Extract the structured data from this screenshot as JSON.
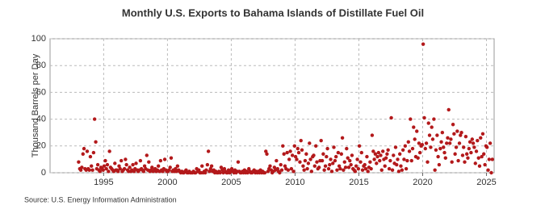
{
  "chart_data": {
    "type": "scatter",
    "title": "Monthly U.S. Exports to Bahama Islands of Distillate Fuel Oil",
    "ylabel": "Thousand Barrels per Day",
    "source": "Source: U.S. Energy Information Administration",
    "color": "#b3191b",
    "grid": true,
    "xlim": [
      1990.8,
      2025.6
    ],
    "ylim": [
      0,
      100
    ],
    "xticks": [
      1995,
      2000,
      2005,
      2010,
      2015,
      2020,
      2025
    ],
    "yticks": [
      0,
      20,
      40,
      60,
      80,
      100
    ],
    "x": [
      1993.04,
      1993.13,
      1993.21,
      1993.29,
      1993.38,
      1993.46,
      1993.54,
      1993.63,
      1993.71,
      1993.79,
      1993.88,
      1993.96,
      1994.04,
      1994.13,
      1994.21,
      1994.29,
      1994.38,
      1994.46,
      1994.54,
      1994.63,
      1994.71,
      1994.79,
      1994.88,
      1994.96,
      1995.04,
      1995.13,
      1995.21,
      1995.29,
      1995.38,
      1995.46,
      1995.54,
      1995.63,
      1995.71,
      1995.79,
      1995.88,
      1995.96,
      1996.04,
      1996.13,
      1996.21,
      1996.29,
      1996.38,
      1996.46,
      1996.54,
      1996.63,
      1996.71,
      1996.79,
      1996.88,
      1996.96,
      1997.04,
      1997.13,
      1997.21,
      1997.29,
      1997.38,
      1997.46,
      1997.54,
      1997.63,
      1997.71,
      1997.79,
      1997.88,
      1997.96,
      1998.04,
      1998.13,
      1998.21,
      1998.29,
      1998.38,
      1998.46,
      1998.54,
      1998.63,
      1998.71,
      1998.79,
      1998.88,
      1998.96,
      1999.04,
      1999.13,
      1999.21,
      1999.29,
      1999.38,
      1999.46,
      1999.54,
      1999.63,
      1999.71,
      1999.79,
      1999.88,
      1999.96,
      2000.04,
      2000.13,
      2000.21,
      2000.29,
      2000.38,
      2000.46,
      2000.54,
      2000.63,
      2000.71,
      2000.79,
      2000.88,
      2000.96,
      2001.04,
      2001.13,
      2001.21,
      2001.29,
      2001.38,
      2001.46,
      2001.54,
      2001.63,
      2001.71,
      2001.79,
      2001.88,
      2001.96,
      2002.04,
      2002.13,
      2002.21,
      2002.29,
      2002.38,
      2002.46,
      2002.54,
      2002.63,
      2002.71,
      2002.79,
      2002.88,
      2002.96,
      2003.04,
      2003.13,
      2003.21,
      2003.29,
      2003.38,
      2003.46,
      2003.54,
      2003.63,
      2003.71,
      2003.79,
      2003.88,
      2003.96,
      2004.04,
      2004.13,
      2004.21,
      2004.29,
      2004.38,
      2004.46,
      2004.54,
      2004.63,
      2004.71,
      2004.79,
      2004.88,
      2004.96,
      2005.04,
      2005.13,
      2005.21,
      2005.29,
      2005.38,
      2005.46,
      2005.54,
      2005.63,
      2005.71,
      2005.79,
      2005.88,
      2005.96,
      2006.04,
      2006.13,
      2006.21,
      2006.29,
      2006.38,
      2006.46,
      2006.54,
      2006.63,
      2006.71,
      2006.79,
      2006.88,
      2006.96,
      2007.04,
      2007.13,
      2007.21,
      2007.29,
      2007.38,
      2007.46,
      2007.54,
      2007.63,
      2007.71,
      2007.79,
      2007.88,
      2007.96,
      2008.04,
      2008.13,
      2008.21,
      2008.29,
      2008.38,
      2008.46,
      2008.54,
      2008.63,
      2008.71,
      2008.79,
      2008.88,
      2008.96,
      2009.04,
      2009.13,
      2009.21,
      2009.29,
      2009.38,
      2009.46,
      2009.54,
      2009.63,
      2009.71,
      2009.79,
      2009.88,
      2009.96,
      2010.04,
      2010.13,
      2010.21,
      2010.29,
      2010.38,
      2010.46,
      2010.54,
      2010.63,
      2010.71,
      2010.79,
      2010.88,
      2010.96,
      2011.04,
      2011.13,
      2011.21,
      2011.29,
      2011.38,
      2011.46,
      2011.54,
      2011.63,
      2011.71,
      2011.79,
      2011.88,
      2011.96,
      2012.04,
      2012.13,
      2012.21,
      2012.29,
      2012.38,
      2012.46,
      2012.54,
      2012.63,
      2012.71,
      2012.79,
      2012.88,
      2012.96,
      2013.04,
      2013.13,
      2013.21,
      2013.29,
      2013.38,
      2013.46,
      2013.54,
      2013.63,
      2013.71,
      2013.79,
      2013.88,
      2013.96,
      2014.04,
      2014.13,
      2014.21,
      2014.29,
      2014.38,
      2014.46,
      2014.54,
      2014.63,
      2014.71,
      2014.79,
      2014.88,
      2014.96,
      2015.04,
      2015.13,
      2015.21,
      2015.29,
      2015.38,
      2015.46,
      2015.54,
      2015.63,
      2015.71,
      2015.79,
      2015.88,
      2015.96,
      2016.04,
      2016.13,
      2016.21,
      2016.29,
      2016.38,
      2016.46,
      2016.54,
      2016.63,
      2016.71,
      2016.79,
      2016.88,
      2016.96,
      2017.04,
      2017.13,
      2017.21,
      2017.29,
      2017.38,
      2017.46,
      2017.54,
      2017.63,
      2017.71,
      2017.79,
      2017.88,
      2017.96,
      2018.04,
      2018.13,
      2018.21,
      2018.29,
      2018.38,
      2018.46,
      2018.54,
      2018.63,
      2018.71,
      2018.79,
      2018.88,
      2018.96,
      2019.04,
      2019.13,
      2019.21,
      2019.29,
      2019.38,
      2019.46,
      2019.54,
      2019.63,
      2019.71,
      2019.79,
      2019.88,
      2019.96,
      2020.04,
      2020.13,
      2020.21,
      2020.29,
      2020.38,
      2020.46,
      2020.54,
      2020.63,
      2020.71,
      2020.79,
      2020.88,
      2020.96,
      2021.04,
      2021.13,
      2021.21,
      2021.29,
      2021.38,
      2021.46,
      2021.54,
      2021.63,
      2021.71,
      2021.79,
      2021.88,
      2021.96,
      2022.04,
      2022.13,
      2022.21,
      2022.29,
      2022.38,
      2022.46,
      2022.54,
      2022.63,
      2022.71,
      2022.79,
      2022.88,
      2022.96,
      2023.04,
      2023.13,
      2023.21,
      2023.29,
      2023.38,
      2023.46,
      2023.54,
      2023.63,
      2023.71,
      2023.79,
      2023.88,
      2023.96,
      2024.04,
      2024.13,
      2024.21,
      2024.29,
      2024.38,
      2024.46,
      2024.54,
      2024.63,
      2024.71,
      2024.79,
      2024.88,
      2024.96,
      2025.04,
      2025.13,
      2025.21,
      2025.29,
      2025.38,
      2025.46
    ],
    "values": [
      8,
      3,
      2,
      4,
      14,
      18,
      3,
      2,
      16,
      3,
      2,
      12,
      5,
      2,
      15,
      40,
      23,
      3,
      6,
      2,
      1,
      4,
      3,
      2,
      5,
      9,
      3,
      6,
      1,
      16,
      4,
      3,
      2,
      1,
      7,
      2,
      2,
      1,
      5,
      3,
      9,
      1,
      2,
      3,
      10,
      6,
      2,
      1,
      4,
      1,
      2,
      6,
      1,
      3,
      7,
      2,
      1,
      2,
      9,
      3,
      2,
      1,
      5,
      3,
      13,
      2,
      8,
      1,
      2,
      4,
      1,
      2,
      3,
      1,
      2,
      5,
      1,
      9,
      2,
      1,
      3,
      10,
      2,
      1,
      1,
      2,
      4,
      11,
      1,
      2,
      1,
      3,
      1,
      5,
      2,
      1,
      0,
      1,
      0,
      0,
      1,
      2,
      0,
      0,
      1,
      0,
      0,
      0,
      1,
      0,
      0,
      3,
      1,
      2,
      0,
      0,
      5,
      0,
      1,
      0,
      2,
      6,
      16,
      1,
      3,
      5,
      1,
      2,
      0,
      1,
      0,
      0,
      1,
      0,
      4,
      2,
      0,
      3,
      1,
      0,
      0,
      2,
      0,
      1,
      3,
      1,
      0,
      2,
      0,
      1,
      8,
      1,
      0,
      0,
      1,
      0,
      2,
      0,
      1,
      0,
      3,
      1,
      0,
      0,
      1,
      2,
      0,
      1,
      0,
      1,
      0,
      2,
      0,
      1,
      0,
      0,
      16,
      14,
      1,
      3,
      5,
      2,
      0,
      1,
      4,
      2,
      9,
      3,
      1,
      0,
      6,
      2,
      20,
      14,
      5,
      3,
      15,
      2,
      10,
      16,
      3,
      13,
      1,
      20,
      12,
      10,
      18,
      15,
      8,
      24,
      17,
      5,
      2,
      9,
      14,
      3,
      7,
      22,
      10,
      1,
      12,
      13,
      5,
      20,
      8,
      3,
      4,
      9,
      24,
      9,
      14,
      2,
      5,
      12,
      18,
      3,
      6,
      10,
      1,
      7,
      19,
      9,
      12,
      2,
      15,
      5,
      3,
      14,
      26,
      2,
      8,
      4,
      18,
      11,
      4,
      9,
      6,
      13,
      3,
      2,
      1,
      5,
      10,
      3,
      20,
      8,
      15,
      2,
      5,
      6,
      3,
      12,
      1,
      4,
      8,
      3,
      28,
      16,
      10,
      14,
      7,
      12,
      15,
      9,
      13,
      2,
      16,
      10,
      5,
      11,
      14,
      17,
      3,
      9,
      41,
      2,
      13,
      7,
      19,
      6,
      10,
      1,
      14,
      5,
      2,
      17,
      10,
      20,
      3,
      9,
      23,
      16,
      40,
      9,
      18,
      34,
      25,
      12,
      31,
      11,
      22,
      15,
      20,
      21,
      96,
      41,
      18,
      22,
      8,
      37,
      28,
      19,
      34,
      25,
      40,
      2,
      17,
      28,
      12,
      6,
      18,
      23,
      30,
      19,
      15,
      11,
      22,
      26,
      47,
      22,
      25,
      8,
      36,
      29,
      14,
      19,
      31,
      9,
      22,
      28,
      30,
      13,
      19,
      8,
      27,
      14,
      11,
      18,
      23,
      15,
      25,
      22,
      19,
      7,
      16,
      24,
      11,
      5,
      26,
      12,
      29,
      14,
      6,
      20,
      19,
      2,
      10,
      22,
      0,
      10
    ]
  }
}
